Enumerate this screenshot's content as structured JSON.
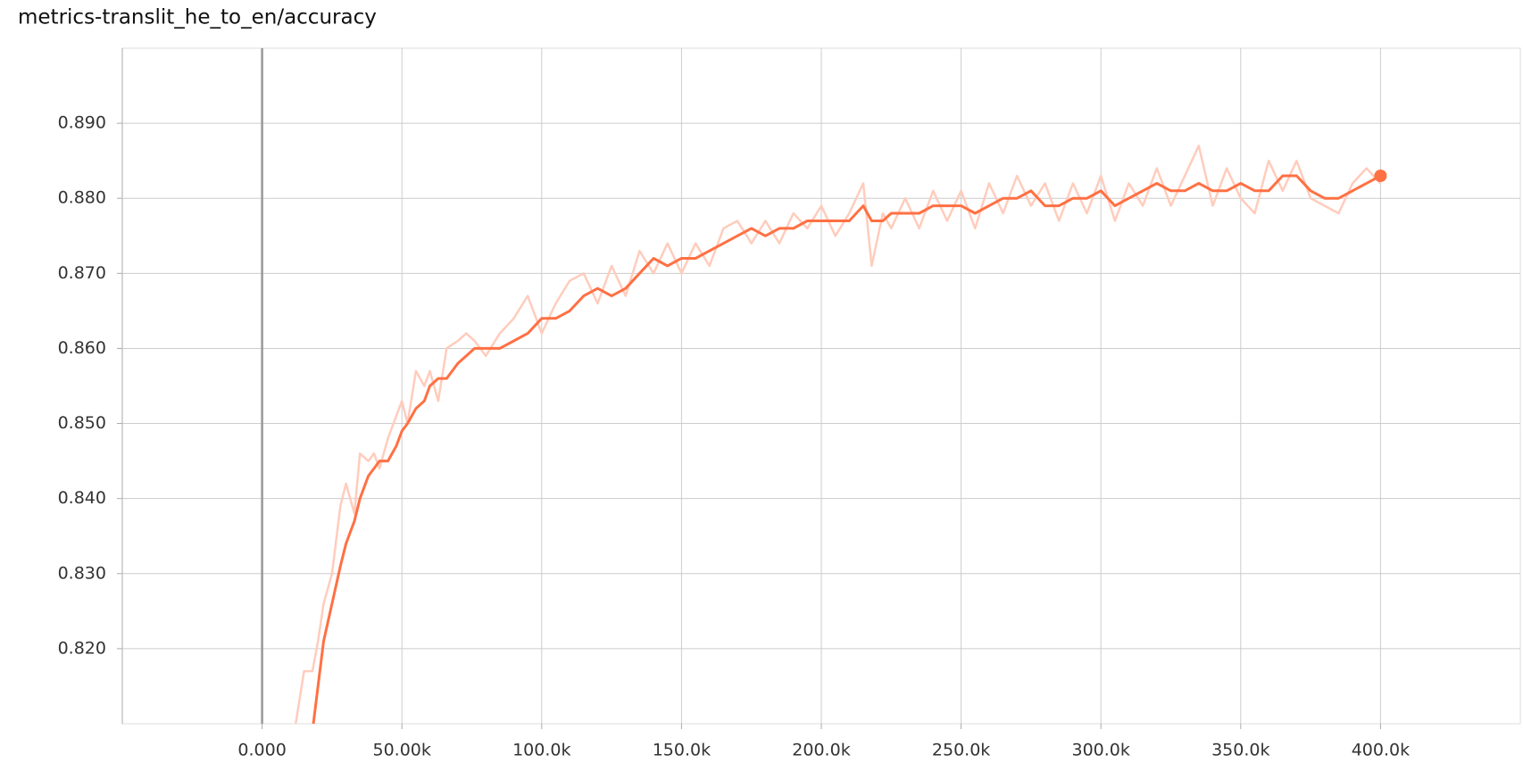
{
  "chart_data": {
    "type": "line",
    "title": "metrics-translit_he_to_en/accuracy",
    "x": [
      12000,
      15000,
      18000,
      20000,
      22000,
      25000,
      28000,
      30000,
      33000,
      35000,
      38000,
      40000,
      42000,
      45000,
      48000,
      50000,
      52000,
      55000,
      58000,
      60000,
      63000,
      66000,
      70000,
      73000,
      76000,
      80000,
      85000,
      90000,
      95000,
      100000,
      105000,
      110000,
      115000,
      120000,
      125000,
      130000,
      135000,
      140000,
      145000,
      150000,
      155000,
      160000,
      165000,
      170000,
      175000,
      180000,
      185000,
      190000,
      195000,
      200000,
      205000,
      210000,
      215000,
      218000,
      222000,
      225000,
      230000,
      235000,
      240000,
      245000,
      250000,
      255000,
      260000,
      265000,
      270000,
      275000,
      280000,
      285000,
      290000,
      295000,
      300000,
      305000,
      310000,
      315000,
      320000,
      325000,
      330000,
      335000,
      340000,
      345000,
      350000,
      355000,
      360000,
      365000,
      370000,
      375000,
      380000,
      385000,
      390000,
      395000,
      400000
    ],
    "series": [
      {
        "color": "#ffccbc",
        "values": [
          0.81,
          0.817,
          0.817,
          0.821,
          0.826,
          0.83,
          0.839,
          0.842,
          0.838,
          0.846,
          0.845,
          0.846,
          0.844,
          0.848,
          0.851,
          0.853,
          0.85,
          0.857,
          0.855,
          0.857,
          0.853,
          0.86,
          0.861,
          0.862,
          0.861,
          0.859,
          0.862,
          0.864,
          0.867,
          0.862,
          0.866,
          0.869,
          0.87,
          0.866,
          0.871,
          0.867,
          0.873,
          0.87,
          0.874,
          0.87,
          0.874,
          0.871,
          0.876,
          0.877,
          0.874,
          0.877,
          0.874,
          0.878,
          0.876,
          0.879,
          0.875,
          0.878,
          0.882,
          0.871,
          0.878,
          0.876,
          0.88,
          0.876,
          0.881,
          0.877,
          0.881,
          0.876,
          0.882,
          0.878,
          0.883,
          0.879,
          0.882,
          0.877,
          0.882,
          0.878,
          0.883,
          0.877,
          0.882,
          0.879,
          0.884,
          0.879,
          0.883,
          0.887,
          0.879,
          0.884,
          0.88,
          0.878,
          0.885,
          0.881,
          0.885,
          0.88,
          0.879,
          0.878,
          0.882,
          0.884,
          0.882
        ]
      },
      {
        "color": "#ff7043",
        "values": [
          null,
          null,
          0.809,
          0.815,
          0.821,
          0.826,
          0.831,
          0.834,
          0.837,
          0.84,
          0.843,
          0.844,
          0.845,
          0.845,
          0.847,
          0.849,
          0.85,
          0.852,
          0.853,
          0.855,
          0.856,
          0.856,
          0.858,
          0.859,
          0.86,
          0.86,
          0.86,
          0.861,
          0.862,
          0.864,
          0.864,
          0.865,
          0.867,
          0.868,
          0.867,
          0.868,
          0.87,
          0.872,
          0.871,
          0.872,
          0.872,
          0.873,
          0.874,
          0.875,
          0.876,
          0.875,
          0.876,
          0.876,
          0.877,
          0.877,
          0.877,
          0.877,
          0.879,
          0.877,
          0.877,
          0.878,
          0.878,
          0.878,
          0.879,
          0.879,
          0.879,
          0.878,
          0.879,
          0.88,
          0.88,
          0.881,
          0.879,
          0.879,
          0.88,
          0.88,
          0.881,
          0.879,
          0.88,
          0.881,
          0.882,
          0.881,
          0.881,
          0.882,
          0.881,
          0.881,
          0.882,
          0.881,
          0.881,
          0.883,
          0.883,
          0.881,
          0.88,
          0.88,
          0.881,
          0.882,
          0.883
        ]
      }
    ],
    "xlim": [
      -50000,
      450000
    ],
    "ylim": [
      0.81,
      0.9
    ],
    "xticks": [
      {
        "value": 0,
        "label": "0.000"
      },
      {
        "value": 50000,
        "label": "50.00k"
      },
      {
        "value": 100000,
        "label": "100.0k"
      },
      {
        "value": 150000,
        "label": "150.0k"
      },
      {
        "value": 200000,
        "label": "200.0k"
      },
      {
        "value": 250000,
        "label": "250.0k"
      },
      {
        "value": 300000,
        "label": "300.0k"
      },
      {
        "value": 350000,
        "label": "350.0k"
      },
      {
        "value": 400000,
        "label": "400.0k"
      }
    ],
    "yticks": [
      {
        "value": 0.82,
        "label": "0.820"
      },
      {
        "value": 0.83,
        "label": "0.830"
      },
      {
        "value": 0.84,
        "label": "0.840"
      },
      {
        "value": 0.85,
        "label": "0.850"
      },
      {
        "value": 0.86,
        "label": "0.860"
      },
      {
        "value": 0.87,
        "label": "0.870"
      },
      {
        "value": 0.88,
        "label": "0.880"
      },
      {
        "value": 0.89,
        "label": "0.890"
      }
    ],
    "grid": true
  }
}
